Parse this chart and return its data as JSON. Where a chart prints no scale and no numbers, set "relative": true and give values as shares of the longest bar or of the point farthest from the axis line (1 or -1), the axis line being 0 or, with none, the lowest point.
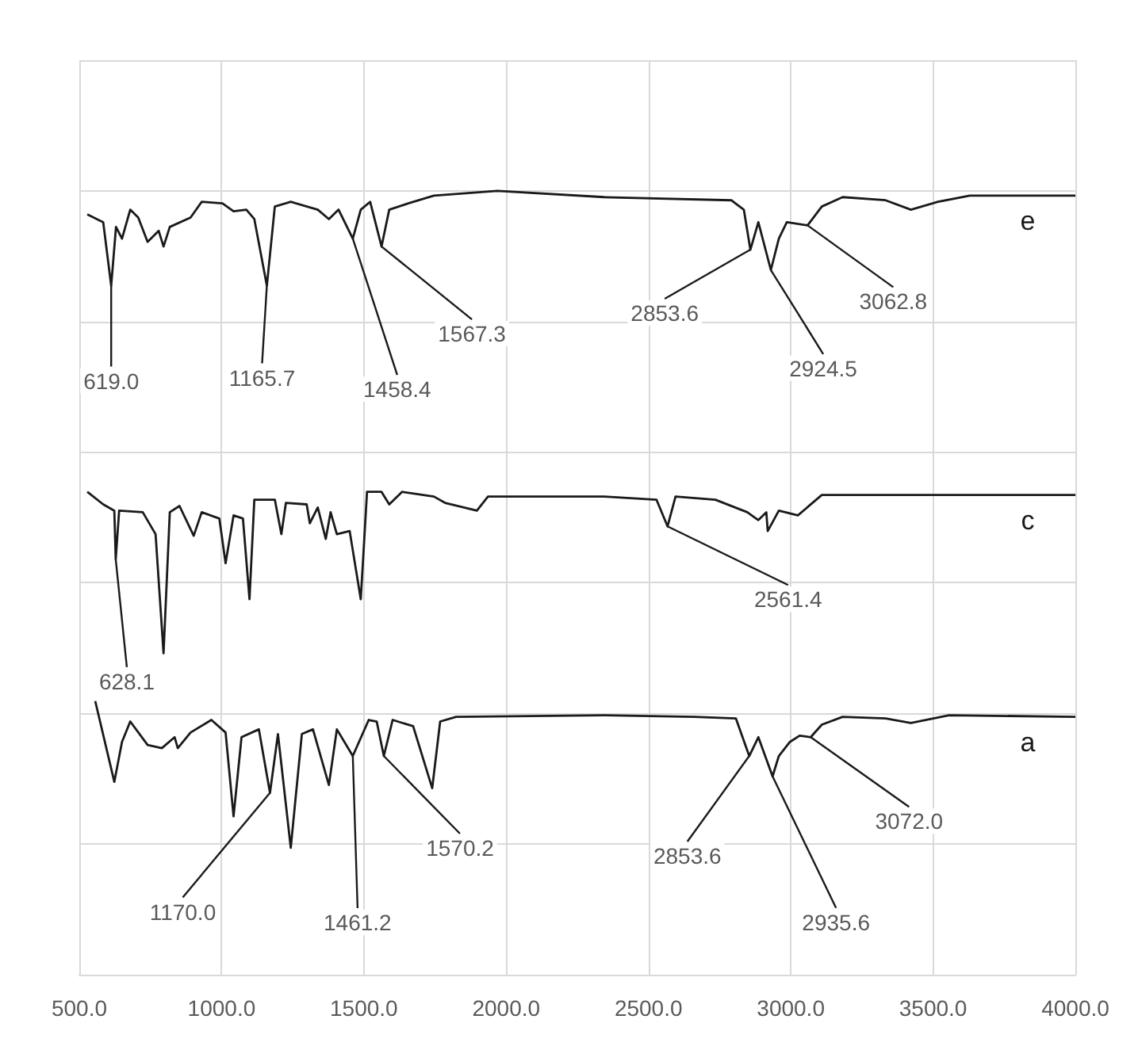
{
  "chart_data": {
    "type": "line",
    "relative": true,
    "grid": true,
    "xlim": [
      500,
      4000
    ],
    "xticks": [
      {
        "value": 500,
        "label": "500.0"
      },
      {
        "value": 1000,
        "label": "1000.0"
      },
      {
        "value": 1500,
        "label": "1500.0"
      },
      {
        "value": 2000,
        "label": "2000.0"
      },
      {
        "value": 2500,
        "label": "2500.0"
      },
      {
        "value": 3000,
        "label": "3000.0"
      },
      {
        "value": 3500,
        "label": "3500.0"
      },
      {
        "value": 4000,
        "label": "4000.0"
      }
    ],
    "series": [
      {
        "name": "e",
        "color": "#1a1a1a",
        "x": [
          528,
          584,
          612,
          629,
          650,
          679,
          707,
          740,
          779,
          796,
          818,
          891,
          930,
          1003,
          1042,
          1087,
          1115,
          1159,
          1187,
          1243,
          1338,
          1377,
          1411,
          1461,
          1489,
          1522,
          1562,
          1589,
          1656,
          1746,
          1969,
          2344,
          2791,
          2835,
          2858,
          2886,
          2930,
          2958,
          2986,
          3059,
          3109,
          3182,
          3333,
          3422,
          3517,
          3629,
          4000
        ],
        "values": [
          0.97,
          0.96,
          0.879,
          0.954,
          0.939,
          0.976,
          0.966,
          0.935,
          0.949,
          0.929,
          0.954,
          0.966,
          0.986,
          0.984,
          0.974,
          0.976,
          0.964,
          0.879,
          0.98,
          0.986,
          0.976,
          0.964,
          0.976,
          0.939,
          0.976,
          0.986,
          0.929,
          0.976,
          0.984,
          0.994,
          1,
          0.992,
          0.988,
          0.976,
          0.925,
          0.96,
          0.899,
          0.939,
          0.96,
          0.956,
          0.98,
          0.992,
          0.988,
          0.976,
          0.986,
          0.994,
          0.994
        ]
      },
      {
        "name": "c",
        "color": "#1a1a1a",
        "x": [
          528,
          584,
          623,
          628,
          640,
          723,
          768,
          796,
          818,
          852,
          902,
          930,
          992,
          1014,
          1042,
          1075,
          1098,
          1115,
          1187,
          1210,
          1226,
          1299,
          1310,
          1338,
          1366,
          1383,
          1405,
          1450,
          1489,
          1511,
          1562,
          1589,
          1634,
          1746,
          1785,
          1897,
          1936,
          2344,
          2528,
          2567,
          2595,
          2735,
          2847,
          2886,
          2914,
          2919,
          2958,
          3025,
          3109,
          4000
        ],
        "values": [
          0.616,
          0.6,
          0.592,
          0.53,
          0.592,
          0.59,
          0.562,
          0.41,
          0.59,
          0.598,
          0.56,
          0.59,
          0.582,
          0.525,
          0.586,
          0.582,
          0.479,
          0.606,
          0.606,
          0.562,
          0.602,
          0.6,
          0.576,
          0.596,
          0.556,
          0.59,
          0.562,
          0.566,
          0.479,
          0.616,
          0.616,
          0.6,
          0.616,
          0.61,
          0.602,
          0.592,
          0.61,
          0.61,
          0.606,
          0.572,
          0.61,
          0.606,
          0.59,
          0.58,
          0.59,
          0.566,
          0.592,
          0.586,
          0.612,
          0.612
        ]
      },
      {
        "name": "a",
        "color": "#1a1a1a",
        "x": [
          556,
          623,
          650,
          679,
          740,
          790,
          835,
          846,
          891,
          964,
          1014,
          1042,
          1070,
          1131,
          1170,
          1198,
          1243,
          1282,
          1321,
          1377,
          1405,
          1461,
          1517,
          1545,
          1570,
          1601,
          1673,
          1740,
          1768,
          1824,
          2344,
          2662,
          2807,
          2854,
          2886,
          2936,
          2958,
          2997,
          3031,
          3070,
          3109,
          3182,
          3333,
          3422,
          3556,
          4000
        ],
        "values": [
          0.349,
          0.246,
          0.297,
          0.323,
          0.293,
          0.289,
          0.303,
          0.289,
          0.309,
          0.325,
          0.309,
          0.202,
          0.303,
          0.313,
          0.232,
          0.307,
          0.162,
          0.307,
          0.313,
          0.242,
          0.313,
          0.279,
          0.325,
          0.323,
          0.279,
          0.325,
          0.317,
          0.238,
          0.323,
          0.329,
          0.331,
          0.329,
          0.327,
          0.279,
          0.303,
          0.253,
          0.279,
          0.297,
          0.305,
          0.303,
          0.319,
          0.329,
          0.327,
          0.321,
          0.331,
          0.329
        ]
      }
    ],
    "annotations": [
      {
        "text": "619.0",
        "x": 612,
        "y": 0.879
      },
      {
        "text": "1165.7",
        "x": 1159,
        "y": 0.879
      },
      {
        "text": "1458.4",
        "x": 1461,
        "y": 0.939
      },
      {
        "text": "1567.3",
        "x": 1562,
        "y": 0.929
      },
      {
        "text": "2853.6",
        "x": 2858,
        "y": 0.925
      },
      {
        "text": "2924.5",
        "x": 2930,
        "y": 0.899
      },
      {
        "text": "3062.8",
        "x": 3059,
        "y": 0.956
      },
      {
        "text": "628.1",
        "x": 628,
        "y": 0.53
      },
      {
        "text": "2561.4",
        "x": 2567,
        "y": 0.572
      },
      {
        "text": "1170.0",
        "x": 1170,
        "y": 0.232
      },
      {
        "text": "1461.2",
        "x": 1461,
        "y": 0.279
      },
      {
        "text": "1570.2",
        "x": 1570,
        "y": 0.279
      },
      {
        "text": "2853.6",
        "x": 2854,
        "y": 0.279
      },
      {
        "text": "2935.6",
        "x": 2936,
        "y": 0.253
      },
      {
        "text": "3072.0",
        "x": 3070,
        "y": 0.303
      }
    ]
  }
}
